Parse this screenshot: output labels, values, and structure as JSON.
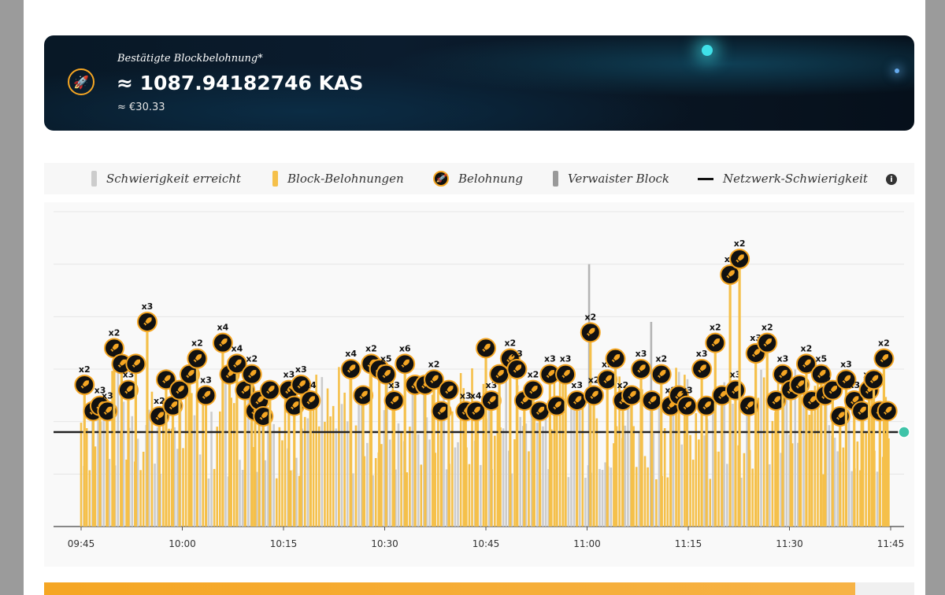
{
  "banner": {
    "label": "Bestätigte Blockbelohnung*",
    "value": "≈ 1087.94182746 KAS",
    "fiat": "≈ €30.33",
    "icon": "rocket-icon"
  },
  "legend": {
    "items": [
      {
        "label": "Schwierigkeit erreicht",
        "color": "#cccccc"
      },
      {
        "label": "Block-Belohnungen",
        "color": "#f5c04a"
      },
      {
        "label": "Belohnung",
        "color": "#111111"
      },
      {
        "label": "Verwaister Block",
        "color": "#999999"
      },
      {
        "label": "Netzwerk-Schwierigkeit",
        "color": "#111111"
      }
    ],
    "info": "i"
  },
  "colors": {
    "share": "#cccccc",
    "block": "#f5c04a",
    "coin_border": "#f5a623",
    "line": "#222222"
  },
  "chart_data": {
    "type": "bar",
    "x_range": [
      "09:45",
      "11:45"
    ],
    "ylim": [
      0,
      6
    ],
    "network_difficulty": 1.8,
    "xticks": [
      {
        "t": 0,
        "label": "09:45"
      },
      {
        "t": 15,
        "label": "10:00"
      },
      {
        "t": 30,
        "label": "10:15"
      },
      {
        "t": 45,
        "label": "10:30"
      },
      {
        "t": 60,
        "label": "10:45"
      },
      {
        "t": 75,
        "label": "11:00"
      },
      {
        "t": 90,
        "label": "11:15"
      },
      {
        "t": 105,
        "label": "11:30"
      },
      {
        "t": 120,
        "label": "11:45"
      }
    ],
    "orphan_bars": [
      {
        "t": 75.3,
        "v": 5.0
      },
      {
        "t": 84.5,
        "v": 3.9
      }
    ],
    "rewards": [
      {
        "t": 0.5,
        "v": 2.7,
        "label": "x2"
      },
      {
        "t": 1.8,
        "v": 2.2,
        "label": ""
      },
      {
        "t": 2.8,
        "v": 2.3,
        "label": "x3"
      },
      {
        "t": 3.9,
        "v": 2.2,
        "label": "x3"
      },
      {
        "t": 4.9,
        "v": 3.4,
        "label": "x2"
      },
      {
        "t": 6.0,
        "v": 3.1,
        "label": ""
      },
      {
        "t": 7.0,
        "v": 2.6,
        "label": "x3"
      },
      {
        "t": 8.1,
        "v": 3.1,
        "label": ""
      },
      {
        "t": 9.8,
        "v": 3.9,
        "label": "x3"
      },
      {
        "t": 11.6,
        "v": 2.1,
        "label": "x2"
      },
      {
        "t": 12.6,
        "v": 2.8,
        "label": ""
      },
      {
        "t": 13.6,
        "v": 2.3,
        "label": ""
      },
      {
        "t": 14.6,
        "v": 2.6,
        "label": ""
      },
      {
        "t": 16.1,
        "v": 2.9,
        "label": ""
      },
      {
        "t": 17.2,
        "v": 3.2,
        "label": "x2"
      },
      {
        "t": 18.5,
        "v": 2.5,
        "label": "x3"
      },
      {
        "t": 21.0,
        "v": 3.5,
        "label": "x4"
      },
      {
        "t": 22.0,
        "v": 2.9,
        "label": ""
      },
      {
        "t": 23.1,
        "v": 3.1,
        "label": "x4"
      },
      {
        "t": 24.3,
        "v": 2.6,
        "label": ""
      },
      {
        "t": 25.3,
        "v": 2.9,
        "label": "x2"
      },
      {
        "t": 25.8,
        "v": 2.2,
        "label": ""
      },
      {
        "t": 26.4,
        "v": 2.4,
        "label": ""
      },
      {
        "t": 27.0,
        "v": 2.1,
        "label": ""
      },
      {
        "t": 28.0,
        "v": 2.6,
        "label": ""
      },
      {
        "t": 30.8,
        "v": 2.6,
        "label": "x3"
      },
      {
        "t": 31.6,
        "v": 2.3,
        "label": "x2"
      },
      {
        "t": 32.6,
        "v": 2.7,
        "label": "x3"
      },
      {
        "t": 34.0,
        "v": 2.4,
        "label": "x4"
      },
      {
        "t": 40.0,
        "v": 3.0,
        "label": "x4"
      },
      {
        "t": 41.8,
        "v": 2.5,
        "label": ""
      },
      {
        "t": 43.0,
        "v": 3.1,
        "label": "x2"
      },
      {
        "t": 44.2,
        "v": 3.0,
        "label": ""
      },
      {
        "t": 45.2,
        "v": 2.9,
        "label": "x5"
      },
      {
        "t": 46.4,
        "v": 2.4,
        "label": "x3"
      },
      {
        "t": 48.0,
        "v": 3.1,
        "label": "x6"
      },
      {
        "t": 49.5,
        "v": 2.7,
        "label": ""
      },
      {
        "t": 51.0,
        "v": 2.7,
        "label": ""
      },
      {
        "t": 52.3,
        "v": 2.8,
        "label": "x2"
      },
      {
        "t": 53.4,
        "v": 2.2,
        "label": ""
      },
      {
        "t": 54.5,
        "v": 2.6,
        "label": ""
      },
      {
        "t": 57.0,
        "v": 2.2,
        "label": "x3"
      },
      {
        "t": 58.5,
        "v": 2.2,
        "label": "x4"
      },
      {
        "t": 60.0,
        "v": 3.4,
        "label": ""
      },
      {
        "t": 60.8,
        "v": 2.4,
        "label": "x3"
      },
      {
        "t": 62.0,
        "v": 2.9,
        "label": ""
      },
      {
        "t": 63.6,
        "v": 3.2,
        "label": "x2"
      },
      {
        "t": 64.6,
        "v": 3.0,
        "label": "x3"
      },
      {
        "t": 65.7,
        "v": 2.4,
        "label": ""
      },
      {
        "t": 67.0,
        "v": 2.6,
        "label": "x2"
      },
      {
        "t": 68.0,
        "v": 2.2,
        "label": ""
      },
      {
        "t": 69.5,
        "v": 2.9,
        "label": "x3"
      },
      {
        "t": 70.5,
        "v": 2.3,
        "label": ""
      },
      {
        "t": 71.8,
        "v": 2.9,
        "label": "x3"
      },
      {
        "t": 73.5,
        "v": 2.4,
        "label": "x3"
      },
      {
        "t": 75.5,
        "v": 3.7,
        "label": "x2"
      },
      {
        "t": 76.0,
        "v": 2.5,
        "label": "x2"
      },
      {
        "t": 78.0,
        "v": 2.8,
        "label": "x2"
      },
      {
        "t": 79.2,
        "v": 3.2,
        "label": ""
      },
      {
        "t": 80.3,
        "v": 2.4,
        "label": "x2"
      },
      {
        "t": 81.6,
        "v": 2.5,
        "label": ""
      },
      {
        "t": 83.0,
        "v": 3.0,
        "label": "x3"
      },
      {
        "t": 84.6,
        "v": 2.4,
        "label": ""
      },
      {
        "t": 86.0,
        "v": 2.9,
        "label": "x2"
      },
      {
        "t": 87.4,
        "v": 2.3,
        "label": "x2"
      },
      {
        "t": 88.6,
        "v": 2.5,
        "label": ""
      },
      {
        "t": 89.8,
        "v": 2.3,
        "label": "x3"
      },
      {
        "t": 92.0,
        "v": 3.0,
        "label": "x3"
      },
      {
        "t": 92.7,
        "v": 2.3,
        "label": ""
      },
      {
        "t": 94.0,
        "v": 3.5,
        "label": "x2"
      },
      {
        "t": 95.0,
        "v": 2.5,
        "label": ""
      },
      {
        "t": 96.2,
        "v": 4.8,
        "label": "x3"
      },
      {
        "t": 97.0,
        "v": 2.6,
        "label": "x3"
      },
      {
        "t": 97.6,
        "v": 5.1,
        "label": "x2"
      },
      {
        "t": 99.0,
        "v": 2.3,
        "label": ""
      },
      {
        "t": 100.0,
        "v": 3.3,
        "label": "x3"
      },
      {
        "t": 101.7,
        "v": 3.5,
        "label": "x2"
      },
      {
        "t": 103.0,
        "v": 2.4,
        "label": ""
      },
      {
        "t": 104.0,
        "v": 2.9,
        "label": "x3"
      },
      {
        "t": 105.2,
        "v": 2.6,
        "label": ""
      },
      {
        "t": 106.5,
        "v": 2.7,
        "label": ""
      },
      {
        "t": 107.5,
        "v": 3.1,
        "label": "x2"
      },
      {
        "t": 108.3,
        "v": 2.4,
        "label": ""
      },
      {
        "t": 109.7,
        "v": 2.9,
        "label": "x5"
      },
      {
        "t": 110.3,
        "v": 2.5,
        "label": "x2"
      },
      {
        "t": 111.4,
        "v": 2.6,
        "label": ""
      },
      {
        "t": 112.5,
        "v": 2.1,
        "label": ""
      },
      {
        "t": 113.4,
        "v": 2.8,
        "label": "x3"
      },
      {
        "t": 114.6,
        "v": 2.4,
        "label": "x3"
      },
      {
        "t": 115.7,
        "v": 2.2,
        "label": ""
      },
      {
        "t": 116.8,
        "v": 2.6,
        "label": "x3"
      },
      {
        "t": 117.5,
        "v": 2.8,
        "label": ""
      },
      {
        "t": 118.4,
        "v": 2.2,
        "label": ""
      },
      {
        "t": 119.0,
        "v": 3.2,
        "label": "x2"
      },
      {
        "t": 119.5,
        "v": 2.2,
        "label": ""
      }
    ]
  }
}
